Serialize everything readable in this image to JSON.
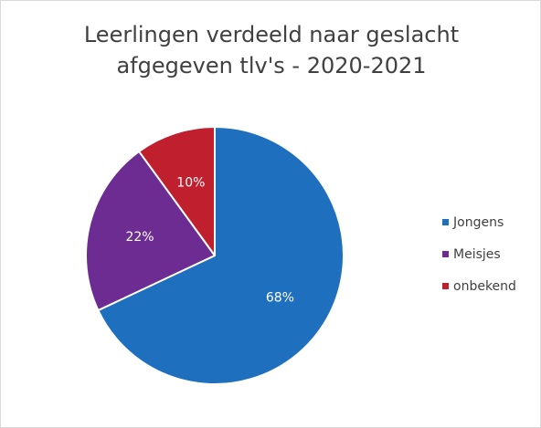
{
  "chart_data": {
    "type": "pie",
    "title_line1": "Leerlingen verdeeld naar geslacht",
    "title_line2": "afgegeven tlv's - 2020-2021",
    "categories": [
      "Jongens",
      "Meisjes",
      "onbekend"
    ],
    "values": [
      68,
      22,
      10
    ],
    "value_labels": [
      "68%",
      "22%",
      "10%"
    ],
    "colors": [
      "#1f6fbf",
      "#6c2c91",
      "#c0202e"
    ],
    "legend_position": "right"
  }
}
